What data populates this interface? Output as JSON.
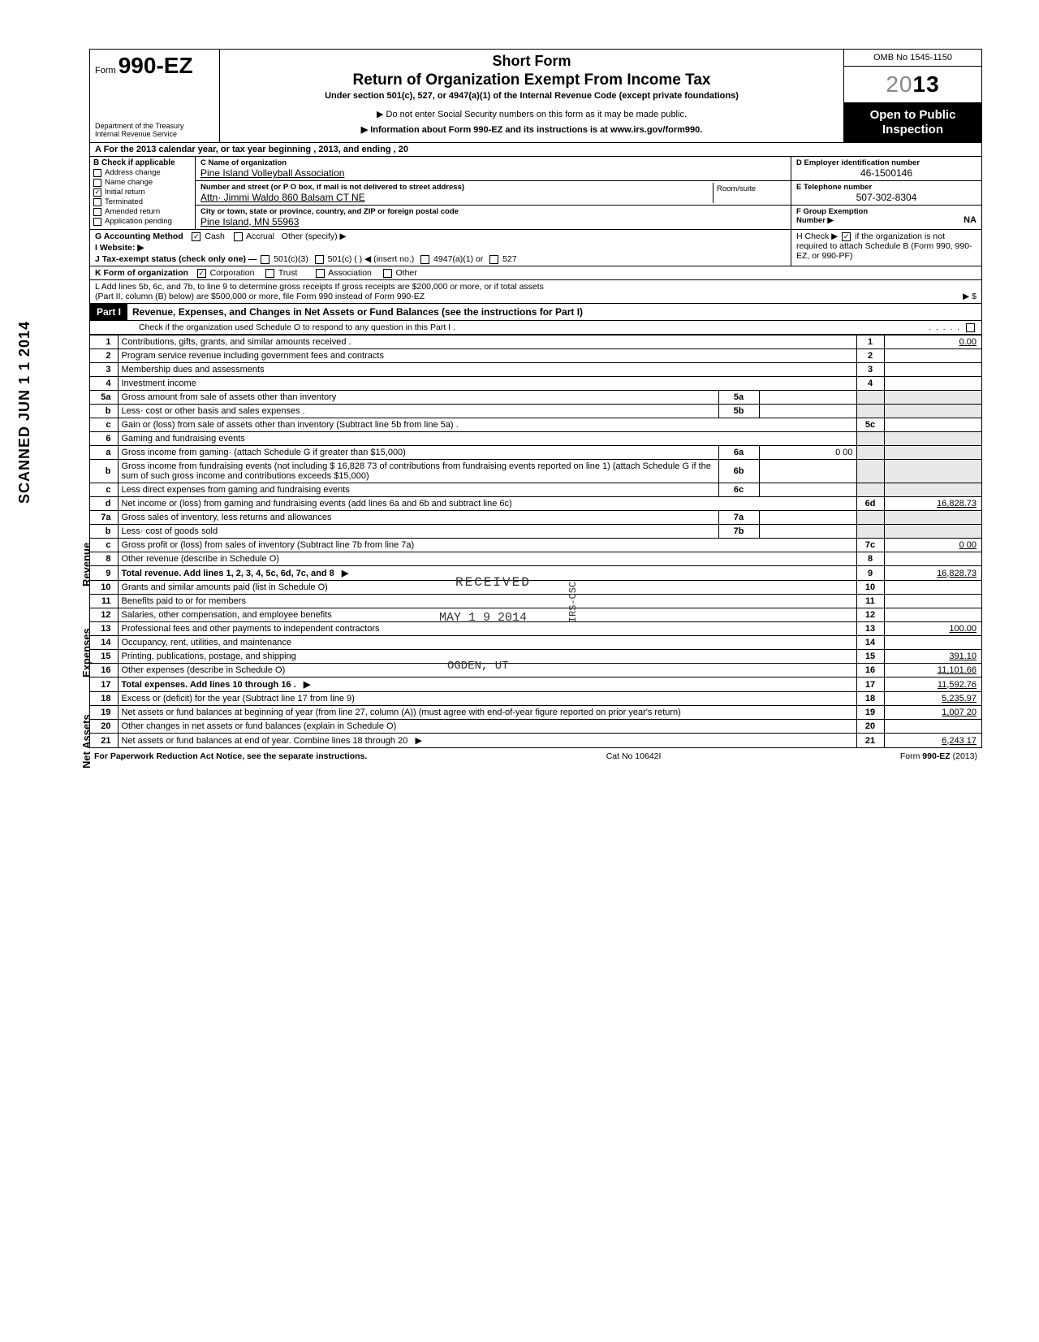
{
  "header": {
    "form_prefix": "Form",
    "form_number": "990-EZ",
    "dept1": "Department of the Treasury",
    "dept2": "Internal Revenue Service",
    "title_short": "Short Form",
    "title_main": "Return of Organization Exempt From Income Tax",
    "subtitle": "Under section 501(c), 527, or 4947(a)(1) of the Internal Revenue Code (except private foundations)",
    "line1": "▶ Do not enter Social Security numbers on this form as it may be made public.",
    "line2": "▶ Information about Form 990-EZ and its instructions is at www.irs.gov/form990.",
    "omb": "OMB No 1545-1150",
    "year_outline": "20",
    "year_bold": "13",
    "open": "Open to Public Inspection"
  },
  "section_a": "A  For the 2013 calendar year, or tax year beginning                                                                           , 2013, and ending                                                       , 20",
  "section_b": {
    "label": "B  Check if applicable",
    "items": [
      "Address change",
      "Name change",
      "Initial return",
      "Terminated",
      "Amended return",
      "Application pending"
    ],
    "checked_index": 2
  },
  "section_c": {
    "label": "C  Name of organization",
    "name": "Pine Island Volleyball Association",
    "addr_label": "Number and street (or P O  box, if mail is not delivered to street address)",
    "addr": "Attn·  Jimmi Waldo     860 Balsam CT NE",
    "city_label": "City or town, state or province, country, and ZIP or foreign postal code",
    "city": "Pine Island,  MN  55963",
    "room": "Room/suite"
  },
  "section_d": {
    "label": "D  Employer identification number",
    "val": "46-1500146"
  },
  "section_e": {
    "label": "E  Telephone number",
    "val": "507-302-8304"
  },
  "section_f": {
    "label": "F  Group Exemption",
    "label2": "Number ▶",
    "val": "NA"
  },
  "section_g": {
    "label": "G  Accounting Method",
    "cash": "Cash",
    "accrual": "Accrual",
    "other": "Other (specify) ▶"
  },
  "section_h": {
    "text": "H  Check ▶",
    "text2": "if the organization is not required to attach Schedule B (Form 990, 990-EZ, or 990-PF)"
  },
  "section_i": "I  Website: ▶",
  "section_j": {
    "label": "J  Tax-exempt status (check only one) —",
    "opts": [
      "501(c)(3)",
      "501(c) (          ) ◀ (insert no.)",
      "4947(a)(1) or",
      "527"
    ]
  },
  "section_k": {
    "label": "K  Form of organization",
    "opts": [
      "Corporation",
      "Trust",
      "Association",
      "Other"
    ]
  },
  "section_l": {
    "l1": "L  Add lines 5b, 6c, and 7b, to line 9 to determine gross receipts  If gross receipts are $200,000 or more, or if total assets",
    "l2": "(Part II, column (B) below) are $500,000 or more, file Form 990 instead of Form 990-EZ",
    "arrow": "▶   $"
  },
  "part1": {
    "badge": "Part I",
    "title": "Revenue, Expenses, and Changes in Net Assets or Fund Balances (see the instructions for Part I)",
    "sub": "Check if the organization used Schedule O to respond to any question in this Part I  ."
  },
  "revenue": [
    {
      "n": "1",
      "d": "Contributions, gifts, grants, and similar amounts received .",
      "num": "1",
      "val": "0.00"
    },
    {
      "n": "2",
      "d": "Program service revenue including government fees and contracts",
      "num": "2",
      "val": ""
    },
    {
      "n": "3",
      "d": "Membership dues and assessments",
      "num": "3",
      "val": ""
    },
    {
      "n": "4",
      "d": "Investment income",
      "num": "4",
      "val": ""
    },
    {
      "n": "5a",
      "d": "Gross amount from sale of assets other than inventory",
      "sub": "5a",
      "subval": "",
      "shade": true
    },
    {
      "n": "b",
      "d": "Less· cost or other basis and sales expenses .",
      "sub": "5b",
      "subval": "",
      "shade": true
    },
    {
      "n": "c",
      "d": "Gain or (loss) from sale of assets other than inventory (Subtract line 5b from line 5a)  .",
      "num": "5c",
      "val": ""
    },
    {
      "n": "6",
      "d": "Gaming and fundraising events",
      "shade": true
    },
    {
      "n": "a",
      "d": "Gross income from gaming· (attach Schedule G if greater than $15,000)",
      "sub": "6a",
      "subval": "0 00",
      "shade": true
    },
    {
      "n": "b",
      "d": "Gross income from fundraising events (not including  $            16,828 73 of contributions from fundraising events reported on line 1) (attach Schedule G if the sum of such gross income and contributions exceeds $15,000)",
      "sub": "6b",
      "subval": "",
      "shade": true
    },
    {
      "n": "c",
      "d": "Less  direct expenses from gaming and fundraising events",
      "sub": "6c",
      "subval": "",
      "shade": true
    },
    {
      "n": "d",
      "d": "Net income or (loss) from gaming and fundraising events (add lines 6a and 6b and subtract line 6c)",
      "num": "6d",
      "val": "16,828.73"
    },
    {
      "n": "7a",
      "d": "Gross sales of inventory, less returns and allowances",
      "sub": "7a",
      "subval": "",
      "shade": true
    },
    {
      "n": "b",
      "d": "Less· cost of goods sold",
      "sub": "7b",
      "subval": "",
      "shade": true
    },
    {
      "n": "c",
      "d": "Gross profit or (loss) from sales of inventory (Subtract line 7b from line 7a)",
      "num": "7c",
      "val": "0 00"
    },
    {
      "n": "8",
      "d": "Other revenue (describe in Schedule O)",
      "num": "8",
      "val": ""
    },
    {
      "n": "9",
      "d": "Total revenue. Add lines 1, 2, 3, 4, 5c, 6d, 7c, and 8",
      "num": "9",
      "val": "16,828.73",
      "bold": true,
      "arrow": true
    }
  ],
  "expenses": [
    {
      "n": "10",
      "d": "Grants and similar amounts paid (list in Schedule O)",
      "num": "10",
      "val": ""
    },
    {
      "n": "11",
      "d": "Benefits paid to or for members",
      "num": "11",
      "val": ""
    },
    {
      "n": "12",
      "d": "Salaries, other compensation, and employee benefits",
      "num": "12",
      "val": ""
    },
    {
      "n": "13",
      "d": "Professional fees and other payments to independent contractors",
      "num": "13",
      "val": "100.00"
    },
    {
      "n": "14",
      "d": "Occupancy, rent, utilities, and maintenance",
      "num": "14",
      "val": ""
    },
    {
      "n": "15",
      "d": "Printing, publications, postage, and shipping",
      "num": "15",
      "val": "391.10"
    },
    {
      "n": "16",
      "d": "Other expenses (describe in Schedule O)",
      "num": "16",
      "val": "11,101.66"
    },
    {
      "n": "17",
      "d": "Total expenses. Add lines 10 through 16  .",
      "num": "17",
      "val": "11,592.76",
      "bold": true,
      "arrow": true
    }
  ],
  "netassets": [
    {
      "n": "18",
      "d": "Excess or (deficit) for the year (Subtract line 17 from line 9)",
      "num": "18",
      "val": "5,235.97"
    },
    {
      "n": "19",
      "d": "Net assets or fund balances at beginning of year (from line 27, column (A)) (must agree with end-of-year figure reported on prior year's return)",
      "num": "19",
      "val": "1,007 20"
    },
    {
      "n": "20",
      "d": "Other changes in net assets or fund balances (explain in Schedule O)",
      "num": "20",
      "val": ""
    },
    {
      "n": "21",
      "d": "Net assets or fund balances at end of year. Combine lines 18 through 20",
      "num": "21",
      "val": "6,243 17",
      "arrow": true
    }
  ],
  "footer": {
    "left": "For Paperwork Reduction Act Notice, see the separate instructions.",
    "mid": "Cat  No  10642I",
    "right": "Form 990-EZ (2013)"
  },
  "stamps": {
    "scanned": "SCANNED  JUN 1 1 2014",
    "received": "RECEIVED",
    "may": "MAY  1 9  2014",
    "irs": "IRS-OSC",
    "ogden": "OGDEN, UT"
  },
  "side_labels": {
    "revenue": "Revenue",
    "expenses": "Expenses",
    "netassets": "Net Assets"
  }
}
